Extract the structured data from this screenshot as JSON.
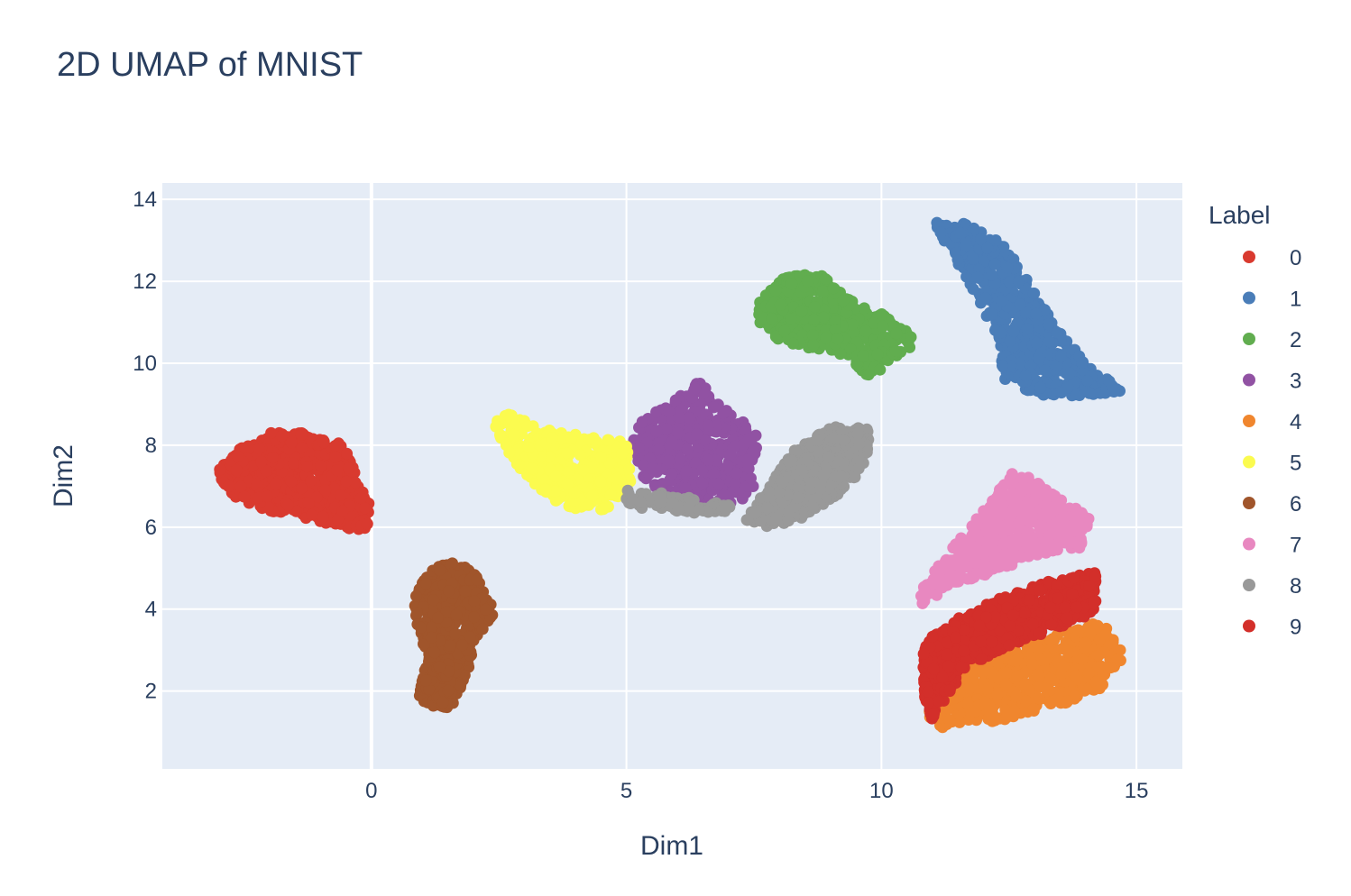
{
  "chart_data": {
    "type": "scatter",
    "title": "2D UMAP of MNIST",
    "xlabel": "Dim1",
    "ylabel": "Dim2",
    "xlim": [
      -4.1,
      15.9
    ],
    "ylim": [
      0.1,
      14.4
    ],
    "x_ticks": [
      0,
      5,
      10,
      15
    ],
    "y_ticks": [
      2,
      4,
      6,
      8,
      10,
      12,
      14
    ],
    "grid": true,
    "legend": {
      "title": "Label",
      "position": "right"
    },
    "series": [
      {
        "name": "0",
        "color": "#d93a2f",
        "clusters": [
          {
            "cx": -1.3,
            "cy": 7.15,
            "rx": 1.55,
            "ry": 0.85,
            "n": 650,
            "poly": [
              [
                -3.0,
                7.4
              ],
              [
                -2.6,
                7.9
              ],
              [
                -2.0,
                8.3
              ],
              [
                -1.2,
                8.3
              ],
              [
                -0.5,
                8.0
              ],
              [
                -0.3,
                7.2
              ],
              [
                0.0,
                6.5
              ],
              [
                -0.1,
                5.9
              ],
              [
                -0.6,
                6.0
              ],
              [
                -1.2,
                6.2
              ],
              [
                -2.0,
                6.4
              ],
              [
                -2.9,
                6.8
              ]
            ]
          }
        ]
      },
      {
        "name": "1",
        "color": "#4a7db8",
        "clusters": [
          {
            "cx": 12.9,
            "cy": 11.0,
            "rx": 1.8,
            "ry": 2.4,
            "n": 600,
            "poly": [
              [
                11.0,
                13.5
              ],
              [
                11.7,
                13.4
              ],
              [
                12.4,
                12.9
              ],
              [
                12.9,
                12.0
              ],
              [
                13.4,
                10.9
              ],
              [
                14.1,
                9.9
              ],
              [
                14.8,
                9.3
              ],
              [
                14.1,
                9.2
              ],
              [
                13.1,
                9.2
              ],
              [
                12.4,
                9.6
              ],
              [
                12.3,
                10.5
              ],
              [
                11.9,
                11.6
              ],
              [
                11.4,
                12.6
              ]
            ]
          }
        ]
      },
      {
        "name": "2",
        "color": "#61ad4f",
        "clusters": [
          {
            "cx": 8.8,
            "cy": 10.9,
            "rx": 1.3,
            "ry": 0.9,
            "n": 520,
            "poly": [
              [
                7.6,
                11.5
              ],
              [
                8.1,
                12.1
              ],
              [
                8.8,
                12.2
              ],
              [
                9.3,
                11.6
              ],
              [
                9.9,
                11.3
              ],
              [
                10.4,
                10.9
              ],
              [
                10.7,
                10.5
              ],
              [
                10.1,
                10.0
              ],
              [
                9.8,
                9.6
              ],
              [
                9.3,
                10.2
              ],
              [
                8.5,
                10.4
              ],
              [
                7.9,
                10.6
              ],
              [
                7.6,
                11.0
              ]
            ]
          }
        ]
      },
      {
        "name": "3",
        "color": "#9152a3",
        "clusters": [
          {
            "cx": 6.3,
            "cy": 7.8,
            "rx": 1.1,
            "ry": 1.0,
            "n": 450,
            "poly": [
              [
                5.3,
                8.6
              ],
              [
                6.0,
                9.2
              ],
              [
                6.4,
                9.6
              ],
              [
                6.9,
                8.9
              ],
              [
                7.6,
                8.3
              ],
              [
                7.5,
                6.9
              ],
              [
                7.0,
                6.4
              ],
              [
                6.2,
                6.4
              ],
              [
                5.6,
                6.7
              ],
              [
                5.3,
                7.3
              ],
              [
                5.1,
                8.0
              ]
            ]
          }
        ]
      },
      {
        "name": "4",
        "color": "#f0862e",
        "clusters": [
          {
            "cx": 12.8,
            "cy": 2.3,
            "rx": 1.6,
            "ry": 0.8,
            "n": 600,
            "poly": [
              [
                11.2,
                1.1
              ],
              [
                12.4,
                1.3
              ],
              [
                13.6,
                1.7
              ],
              [
                14.4,
                2.1
              ],
              [
                14.8,
                2.9
              ],
              [
                14.3,
                3.7
              ],
              [
                13.4,
                3.4
              ],
              [
                12.5,
                3.0
              ],
              [
                11.6,
                2.7
              ],
              [
                11.0,
                2.1
              ],
              [
                10.9,
                1.4
              ]
            ]
          }
        ]
      },
      {
        "name": "5",
        "color": "#fbfb4f",
        "clusters": [
          {
            "cx": 3.8,
            "cy": 7.6,
            "rx": 1.2,
            "ry": 0.8,
            "n": 450,
            "poly": [
              [
                2.4,
                8.9
              ],
              [
                3.2,
                8.5
              ],
              [
                4.2,
                8.2
              ],
              [
                5.0,
                8.1
              ],
              [
                5.1,
                7.0
              ],
              [
                4.6,
                6.4
              ],
              [
                3.9,
                6.4
              ],
              [
                3.3,
                6.9
              ],
              [
                2.8,
                7.6
              ],
              [
                2.4,
                8.4
              ]
            ]
          }
        ]
      },
      {
        "name": "6",
        "color": "#a0552b",
        "clusters": [
          {
            "cx": 1.6,
            "cy": 3.3,
            "rx": 0.5,
            "ry": 1.4,
            "n": 500,
            "poly": [
              [
                0.8,
                4.3
              ],
              [
                1.2,
                5.0
              ],
              [
                1.8,
                5.2
              ],
              [
                2.2,
                4.6
              ],
              [
                2.4,
                3.9
              ],
              [
                2.0,
                3.0
              ],
              [
                1.8,
                2.1
              ],
              [
                1.6,
                1.6
              ],
              [
                1.2,
                1.5
              ],
              [
                0.9,
                1.9
              ],
              [
                1.1,
                2.8
              ],
              [
                0.9,
                3.6
              ]
            ]
          }
        ]
      },
      {
        "name": "7",
        "color": "#e888c0",
        "clusters": [
          {
            "cx": 12.5,
            "cy": 5.9,
            "rx": 1.4,
            "ry": 1.0,
            "n": 550,
            "poly": [
              [
                10.7,
                4.3
              ],
              [
                11.2,
                5.2
              ],
              [
                12.0,
                6.4
              ],
              [
                12.6,
                7.4
              ],
              [
                13.2,
                7.0
              ],
              [
                14.1,
                6.2
              ],
              [
                13.9,
                5.5
              ],
              [
                13.0,
                5.3
              ],
              [
                12.2,
                4.9
              ],
              [
                11.4,
                4.6
              ],
              [
                10.8,
                4.1
              ]
            ]
          }
        ]
      },
      {
        "name": "8",
        "color": "#999999",
        "clusters": [
          {
            "cx": 8.6,
            "cy": 7.2,
            "rx": 1.2,
            "ry": 0.9,
            "n": 520,
            "poly": [
              [
                7.3,
                6.2
              ],
              [
                7.8,
                7.0
              ],
              [
                8.3,
                7.9
              ],
              [
                9.1,
                8.5
              ],
              [
                9.8,
                8.4
              ],
              [
                9.7,
                7.5
              ],
              [
                9.2,
                6.8
              ],
              [
                8.4,
                6.2
              ],
              [
                7.8,
                6.0
              ]
            ]
          },
          {
            "cx": 6.2,
            "cy": 6.6,
            "rx": 0.8,
            "ry": 0.2,
            "n": 80,
            "poly": [
              [
                5.0,
                6.9
              ],
              [
                6.0,
                6.8
              ],
              [
                7.2,
                6.5
              ],
              [
                6.8,
                6.3
              ],
              [
                5.8,
                6.4
              ],
              [
                5.0,
                6.5
              ]
            ]
          }
        ]
      },
      {
        "name": "9",
        "color": "#d32f2a",
        "clusters": [
          {
            "cx": 12.3,
            "cy": 3.6,
            "rx": 1.8,
            "ry": 1.0,
            "n": 700,
            "poly": [
              [
                10.8,
                3.2
              ],
              [
                11.5,
                3.8
              ],
              [
                12.4,
                4.3
              ],
              [
                13.3,
                4.7
              ],
              [
                14.2,
                4.9
              ],
              [
                14.2,
                3.9
              ],
              [
                13.4,
                3.5
              ],
              [
                12.5,
                3.1
              ],
              [
                11.7,
                2.6
              ],
              [
                11.3,
                1.9
              ],
              [
                11.0,
                1.3
              ],
              [
                10.8,
                2.0
              ]
            ]
          }
        ]
      }
    ]
  }
}
